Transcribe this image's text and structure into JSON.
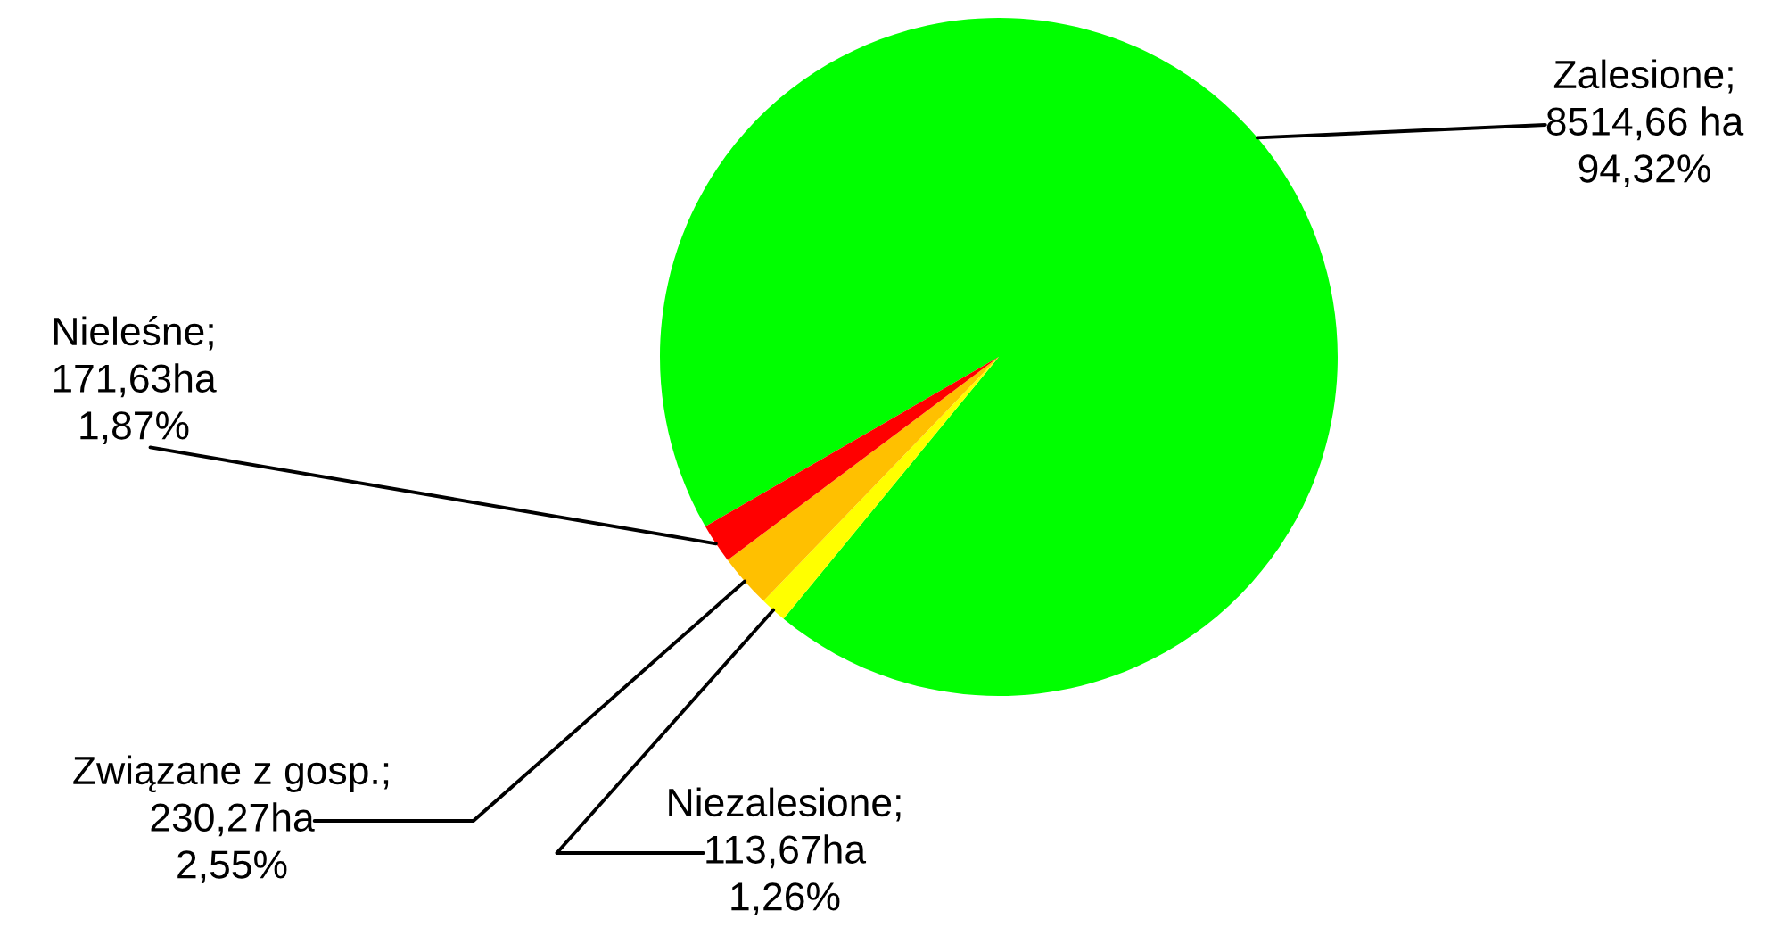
{
  "chart_data": {
    "type": "pie",
    "categories": [
      "Zalesione",
      "Niezalesione",
      "Związane z gosp.",
      "Nieleśne"
    ],
    "values": [
      8514.66,
      113.67,
      230.27,
      171.63
    ],
    "colors": [
      "#00ff00",
      "#ffff00",
      "#ffc000",
      "#ff0000"
    ],
    "value_labels": [
      ";\n8514,66 ha\n94,32%",
      ";\n113,67ha\n1,26%",
      ";\n230,27ha\n2,55%",
      ";\n171,63ha\n1,87%"
    ]
  }
}
